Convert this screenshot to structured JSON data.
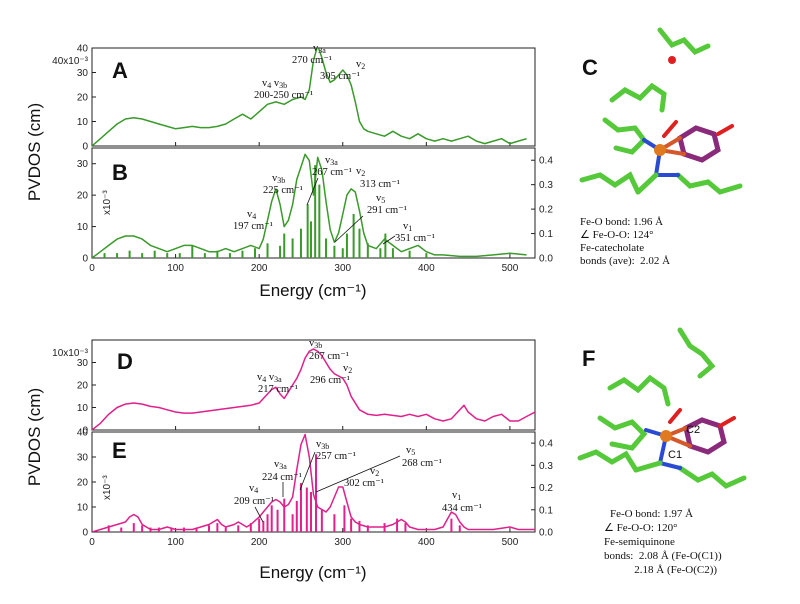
{
  "figure": {
    "ylabel_top": "PVDOS (cm)",
    "ylabel_bottom": "PVDOS (cm)",
    "xlabel_top": "Energy (cm⁻¹)",
    "xlabel_bottom": "Energy (cm⁻¹)",
    "scale_top": "40x10⁻³",
    "scale_bottom": "10x10⁻³",
    "scale_B": "x10⁻³",
    "scale_E": "x10⁻³"
  },
  "colors": {
    "green": "#3a9a2a",
    "magenta": "#e0208c"
  },
  "chart_data": [
    {
      "panel": "A",
      "type": "line",
      "xlim": [
        0,
        530
      ],
      "ylim": [
        0,
        40
      ],
      "yticks": [
        0,
        10,
        20,
        30,
        40
      ],
      "xticks": [],
      "series": [
        {
          "x": [
            0,
            10,
            20,
            30,
            40,
            50,
            60,
            70,
            80,
            90,
            100,
            110,
            120,
            130,
            140,
            150,
            160,
            170,
            180,
            190,
            200,
            210,
            220,
            230,
            240,
            250,
            255,
            260,
            265,
            270,
            275,
            280,
            285,
            290,
            295,
            300,
            305,
            310,
            315,
            320,
            325,
            330,
            340,
            350,
            360,
            370,
            380,
            390,
            400,
            410,
            420,
            430,
            440,
            450,
            460,
            470,
            480,
            490,
            500,
            510,
            520
          ],
          "y": [
            0,
            3,
            6,
            9,
            11,
            11.5,
            11,
            10,
            9,
            8,
            7,
            7.5,
            8,
            7.5,
            7.5,
            8,
            9,
            11,
            13,
            11,
            14,
            17,
            18,
            17,
            19,
            20,
            19,
            23,
            35,
            41,
            36,
            30,
            26,
            27,
            29,
            31,
            29,
            25,
            18,
            10,
            7,
            6,
            5,
            4,
            6,
            4,
            3,
            5,
            3,
            2,
            3,
            2,
            3,
            4,
            2,
            1,
            2,
            3,
            1,
            2,
            3
          ]
        }
      ],
      "annotations": [
        {
          "label": "v4 v3b",
          "value": "200-250 cm⁻¹"
        },
        {
          "label": "v3a",
          "value": "270 cm⁻¹"
        },
        {
          "label": "v2",
          "value": "305 cm⁻¹"
        }
      ]
    },
    {
      "panel": "B",
      "type": "line",
      "xlim": [
        0,
        530
      ],
      "ylim": [
        0,
        35
      ],
      "yticks": [
        0,
        10,
        20,
        30
      ],
      "y2ticks": [
        0.0,
        0.1,
        0.2,
        0.3,
        0.4
      ],
      "xticks": [
        0,
        100,
        200,
        300,
        400,
        500
      ],
      "series": [
        {
          "x": [
            0,
            10,
            20,
            30,
            40,
            50,
            60,
            70,
            80,
            90,
            100,
            110,
            120,
            130,
            140,
            150,
            160,
            170,
            180,
            190,
            200,
            205,
            210,
            215,
            220,
            225,
            230,
            235,
            240,
            245,
            250,
            255,
            260,
            265,
            270,
            275,
            280,
            285,
            290,
            295,
            300,
            305,
            310,
            315,
            320,
            325,
            330,
            340,
            350,
            360,
            370,
            380,
            390,
            400,
            410,
            420,
            440,
            460,
            480,
            500,
            520
          ],
          "y": [
            0,
            2,
            4,
            6,
            7,
            7,
            6,
            4,
            3,
            2,
            3,
            4,
            4,
            3,
            2,
            2,
            3,
            2,
            3,
            4,
            3,
            6,
            12,
            18,
            22,
            17,
            10,
            12,
            17,
            25,
            29,
            33,
            31,
            20,
            32,
            28,
            18,
            9,
            5,
            8,
            14,
            20,
            22,
            21,
            15,
            8,
            4,
            3,
            6,
            4,
            2,
            3,
            4,
            2,
            1,
            1,
            0.5,
            0.5,
            1,
            1.5,
            1
          ]
        }
      ],
      "bars": {
        "x": [
          15,
          30,
          45,
          60,
          75,
          90,
          105,
          120,
          135,
          150,
          165,
          180,
          195,
          210,
          225,
          230,
          240,
          250,
          258,
          262,
          267,
          272,
          280,
          290,
          300,
          305,
          313,
          320,
          330,
          345,
          351,
          360,
          380,
          400
        ],
        "h": [
          0.02,
          0.02,
          0.03,
          0.02,
          0.03,
          0.02,
          0.02,
          0.05,
          0.02,
          0.03,
          0.02,
          0.03,
          0.04,
          0.06,
          0.05,
          0.1,
          0.08,
          0.12,
          0.22,
          0.15,
          0.38,
          0.3,
          0.08,
          0.05,
          0.04,
          0.1,
          0.18,
          0.12,
          0.06,
          0.04,
          0.1,
          0.04,
          0.03,
          0.02
        ]
      },
      "annotations": [
        {
          "label": "v4",
          "value": "197 cm⁻¹"
        },
        {
          "label": "v3b",
          "value": "225 cm⁻¹"
        },
        {
          "label": "v3a",
          "value": "267 cm⁻¹"
        },
        {
          "label": "v2",
          "value": "313 cm⁻¹"
        },
        {
          "label": "v5",
          "value": "291 cm⁻¹"
        },
        {
          "label": "v1",
          "value": "351 cm⁻¹"
        }
      ]
    },
    {
      "panel": "D",
      "type": "line",
      "xlim": [
        0,
        530
      ],
      "ylim": [
        0,
        40
      ],
      "yticks": [
        0,
        10,
        20,
        30
      ],
      "xticks": [],
      "series": [
        {
          "x": [
            0,
            10,
            20,
            30,
            40,
            50,
            60,
            70,
            80,
            90,
            100,
            110,
            120,
            130,
            140,
            150,
            160,
            170,
            180,
            190,
            200,
            210,
            215,
            220,
            225,
            230,
            235,
            240,
            245,
            250,
            255,
            260,
            265,
            270,
            275,
            280,
            285,
            290,
            295,
            300,
            305,
            310,
            320,
            330,
            340,
            350,
            360,
            370,
            380,
            390,
            400,
            410,
            420,
            430,
            440,
            445,
            450,
            460,
            470,
            480,
            490,
            500,
            510,
            520,
            530
          ],
          "y": [
            0,
            3,
            7,
            10,
            11.5,
            12,
            11.5,
            10.5,
            10,
            9,
            8,
            7.5,
            7.5,
            8,
            8.5,
            9,
            9.5,
            10,
            10.5,
            11,
            12,
            16,
            18,
            19,
            16,
            14,
            17,
            20,
            23,
            27,
            32,
            35,
            36,
            35,
            33,
            30,
            27,
            25,
            24,
            23,
            20,
            15,
            9,
            7,
            6.5,
            7,
            6.5,
            6,
            7,
            6,
            7,
            5,
            4,
            5,
            9,
            11,
            8,
            5,
            4,
            6,
            7,
            4,
            4,
            6,
            8
          ]
        }
      ],
      "annotations": [
        {
          "label": "v4 v3a",
          "value": "217 cm⁻¹"
        },
        {
          "label": "v3b",
          "value": "267 cm⁻¹"
        },
        {
          "label": "v2",
          "value": "296 cm⁻¹"
        }
      ]
    },
    {
      "panel": "E",
      "type": "line",
      "xlim": [
        0,
        530
      ],
      "ylim": [
        0,
        40
      ],
      "yticks": [
        0,
        10,
        20,
        30,
        40
      ],
      "y2ticks": [
        0.0,
        0.1,
        0.2,
        0.3,
        0.4
      ],
      "xticks": [
        0,
        100,
        200,
        300,
        400,
        500
      ],
      "series": [
        {
          "x": [
            0,
            10,
            20,
            30,
            40,
            45,
            50,
            55,
            60,
            70,
            80,
            90,
            100,
            110,
            120,
            130,
            140,
            145,
            150,
            155,
            160,
            170,
            175,
            180,
            185,
            190,
            200,
            205,
            210,
            215,
            220,
            225,
            230,
            235,
            240,
            245,
            250,
            255,
            260,
            265,
            270,
            275,
            280,
            285,
            290,
            295,
            300,
            305,
            310,
            315,
            320,
            330,
            340,
            350,
            360,
            365,
            370,
            375,
            380,
            390,
            400,
            410,
            420,
            425,
            430,
            435,
            440,
            445,
            450,
            460,
            480,
            500,
            510,
            520,
            530
          ],
          "y": [
            0,
            1,
            2,
            3,
            4,
            6,
            7,
            6,
            3,
            1,
            1,
            2,
            1,
            1,
            1,
            2,
            3,
            4,
            5,
            3,
            2,
            3,
            4,
            3,
            2,
            3,
            6,
            8,
            10,
            12,
            13,
            12,
            10,
            11,
            14,
            25,
            35,
            39,
            30,
            15,
            10,
            9,
            8,
            10,
            14,
            18,
            18,
            12,
            6,
            4,
            3,
            2,
            2,
            2,
            3,
            4,
            5,
            4,
            2,
            1,
            1,
            1,
            2,
            5,
            8,
            7,
            4,
            2,
            1,
            1,
            1,
            2,
            1,
            1,
            1
          ]
        }
      ],
      "bars": {
        "x": [
          20,
          35,
          50,
          60,
          70,
          80,
          95,
          110,
          125,
          140,
          150,
          160,
          175,
          190,
          200,
          205,
          210,
          215,
          222,
          230,
          240,
          245,
          250,
          257,
          262,
          268,
          275,
          290,
          302,
          310,
          320,
          330,
          350,
          365,
          375,
          430,
          440
        ],
        "h": [
          0.03,
          0.02,
          0.04,
          0.03,
          0.02,
          0.02,
          0.02,
          0.02,
          0.02,
          0.03,
          0.04,
          0.02,
          0.03,
          0.04,
          0.06,
          0.05,
          0.08,
          0.12,
          0.1,
          0.15,
          0.08,
          0.14,
          0.22,
          0.2,
          0.18,
          0.35,
          0.1,
          0.08,
          0.12,
          0.06,
          0.05,
          0.03,
          0.04,
          0.06,
          0.04,
          0.06,
          0.03
        ]
      },
      "annotations": [
        {
          "label": "v4",
          "value": "209 cm⁻¹"
        },
        {
          "label": "v3a",
          "value": "224 cm⁻¹"
        },
        {
          "label": "v3b",
          "value": "257 cm⁻¹"
        },
        {
          "label": "v5",
          "value": "268 cm⁻¹"
        },
        {
          "label": "v2",
          "value": "302 cm⁻¹"
        },
        {
          "label": "v1",
          "value": "434 cm⁻¹"
        }
      ]
    }
  ],
  "structures": {
    "C": {
      "letter": "C",
      "lines": [
        "Fe-O bond: 1.96 Å",
        "∠ Fe-O-O: 124°",
        "Fe-catecholate",
        "bonds (ave):  2.02 Å"
      ]
    },
    "F": {
      "letter": "F",
      "atom_labels": [
        "C2",
        "C1"
      ],
      "lines": [
        "Fe-O bond: 1.97 Å",
        "∠ Fe-O-O: 120°",
        "Fe-semiquinone",
        "bonds:  2.08 Å (Fe-O(C1))",
        "           2.18 Å (Fe-O(C2))"
      ]
    }
  }
}
